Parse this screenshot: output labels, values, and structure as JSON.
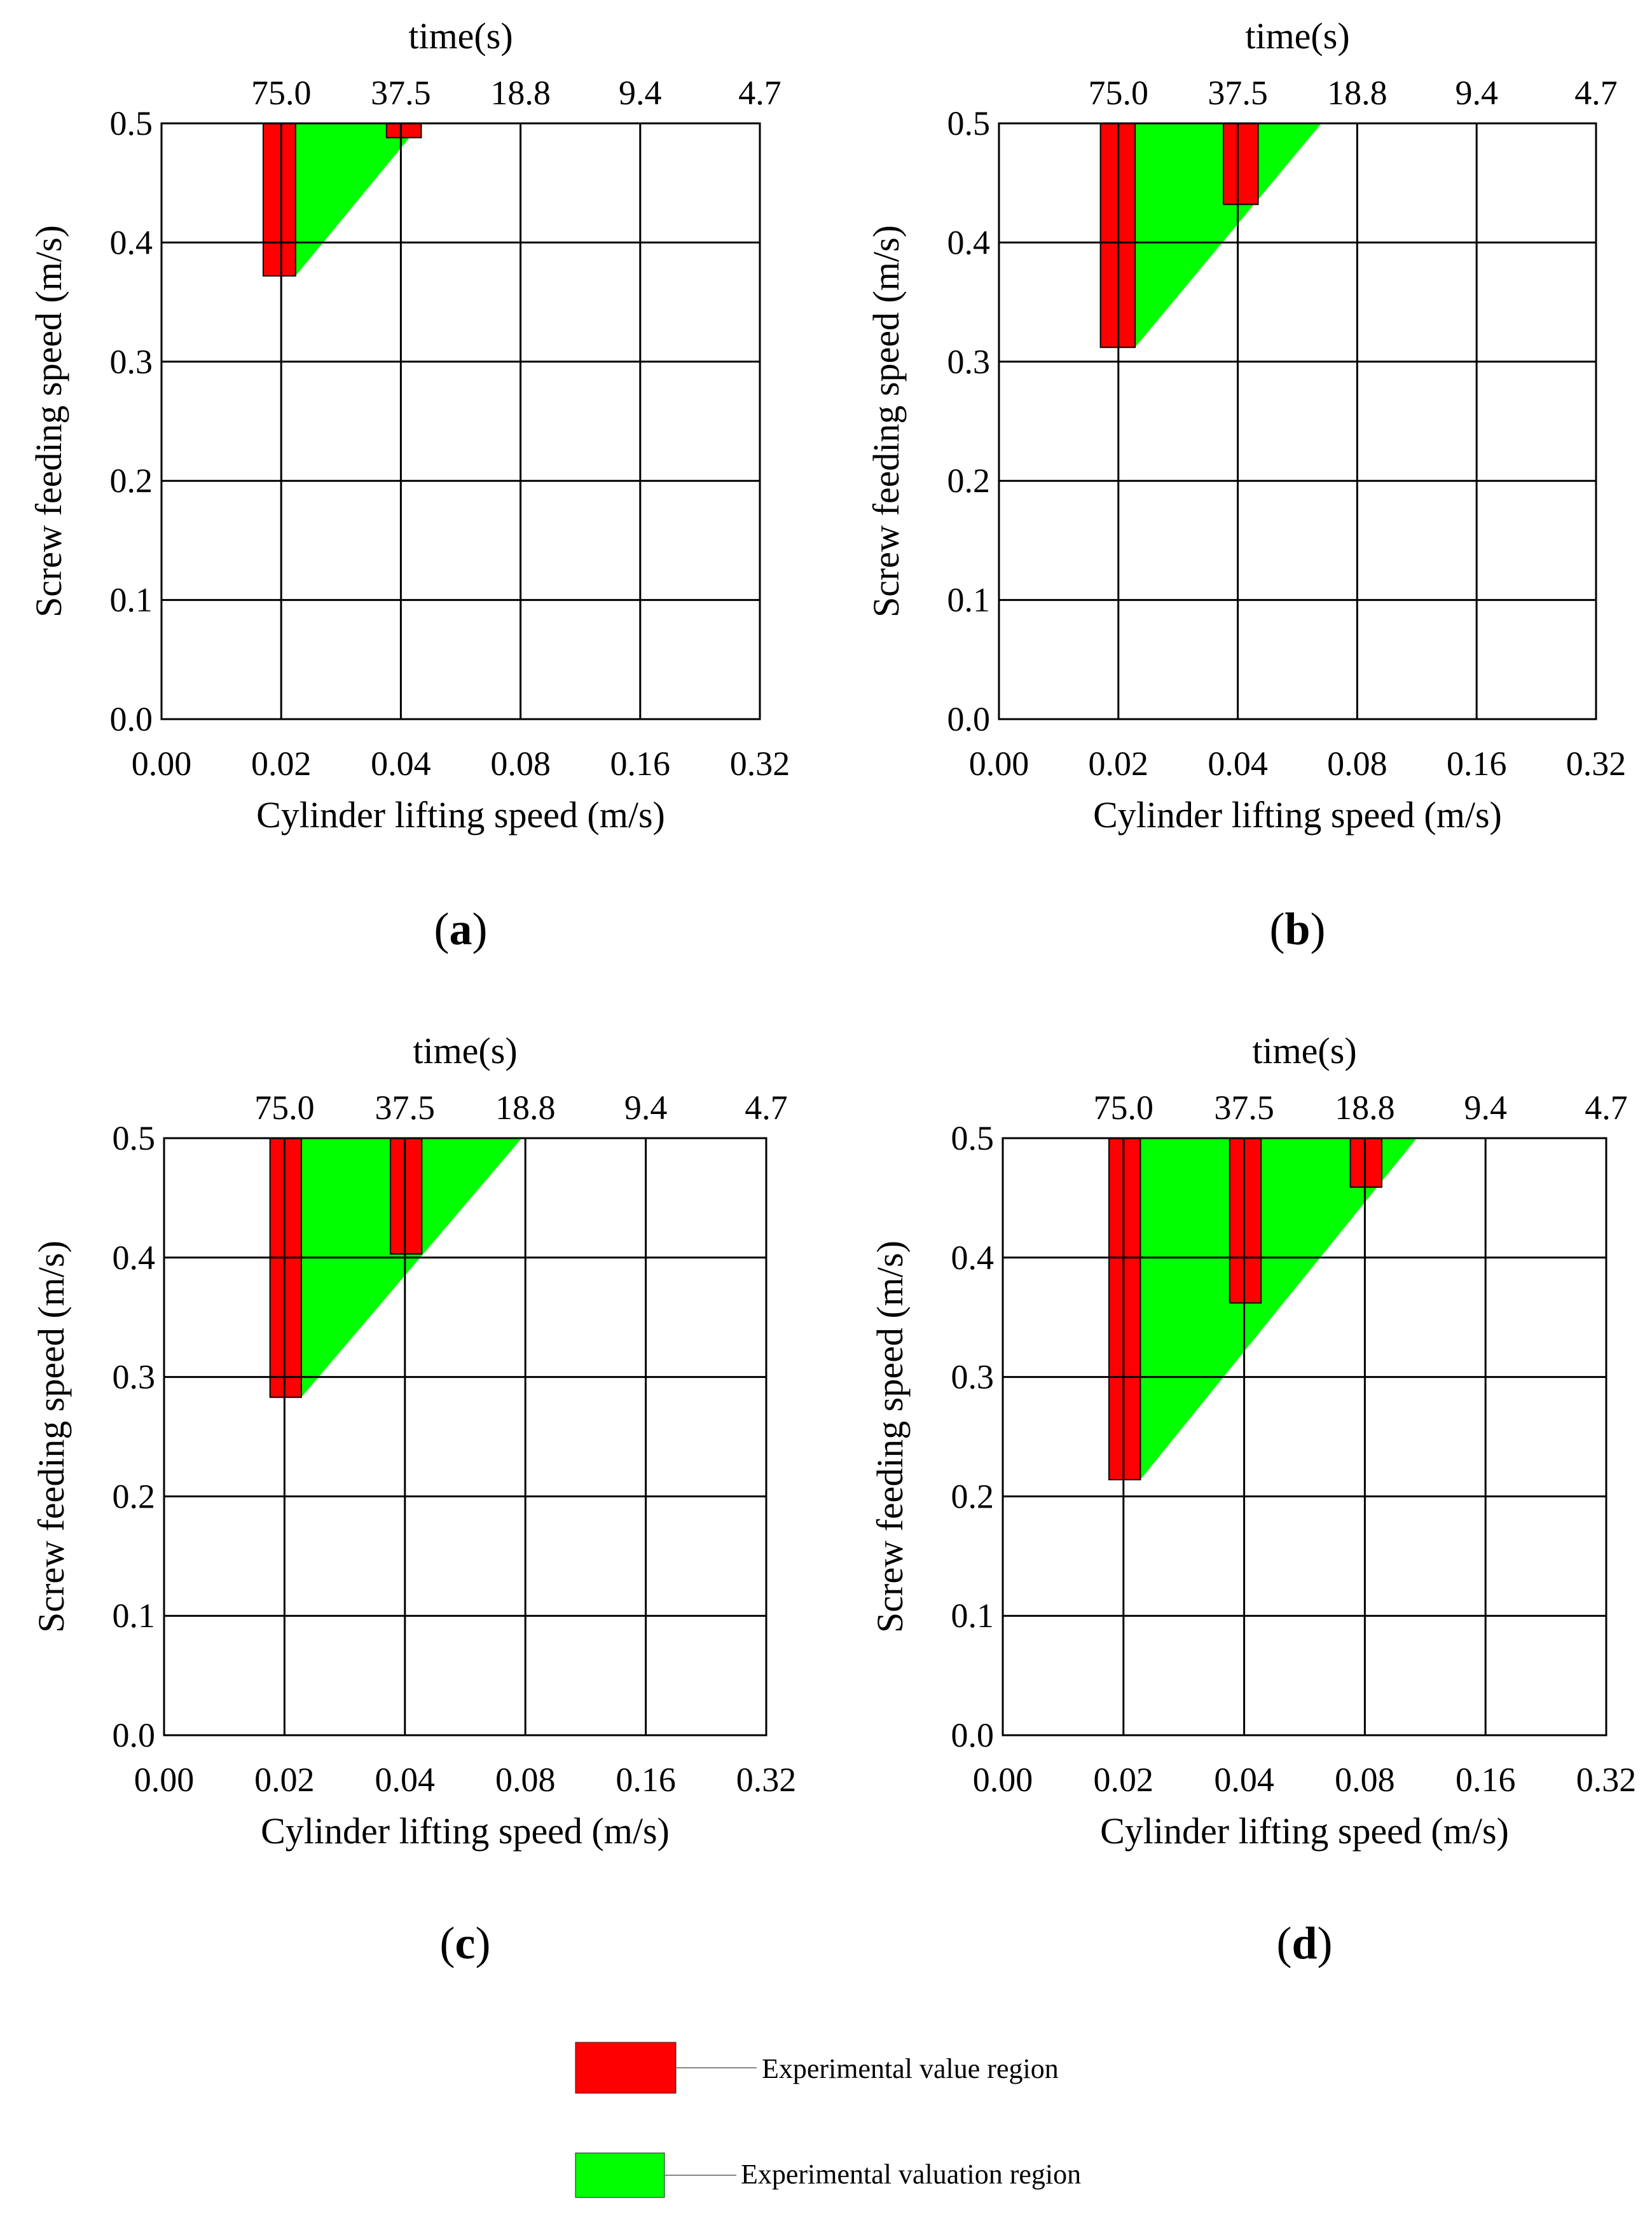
{
  "colors": {
    "experimental": "#ff0000",
    "valuation": "#00ff00",
    "grid": "#000000",
    "background": "#ffffff"
  },
  "chart_data": [
    {
      "type": "area",
      "panel_label": "(a)",
      "panel_letter": "a",
      "xlabel": "Cylinder lifting speed (m/s)",
      "ylabel": "Screw feeding speed (m/s)",
      "top_axis_title": "time(s)",
      "x_tick_labels": [
        "0.00",
        "0.02",
        "0.04",
        "0.08",
        "0.16",
        "0.32"
      ],
      "top_tick_labels": [
        "75.0",
        "37.5",
        "18.8",
        "9.4",
        "4.7"
      ],
      "y_tick_labels": [
        "0.0",
        "0.1",
        "0.2",
        "0.3",
        "0.4",
        "0.5"
      ],
      "ylim": [
        0,
        0.5
      ],
      "valuation_region": [
        [
          0.85,
          0.372
        ],
        [
          1.12,
          0.372
        ],
        [
          2.17,
          0.5
        ],
        [
          0.85,
          0.5
        ]
      ],
      "experimental_bars": [
        {
          "x0": 0.85,
          "x1": 1.12,
          "y_min": 0.372
        },
        {
          "x0": 1.88,
          "x1": 2.17,
          "y_min": 0.488
        }
      ]
    },
    {
      "type": "area",
      "panel_label": "(b)",
      "panel_letter": "b",
      "xlabel": "Cylinder lifting speed (m/s)",
      "ylabel": "Screw feeding speed (m/s)",
      "top_axis_title": "time(s)",
      "x_tick_labels": [
        "0.00",
        "0.02",
        "0.04",
        "0.08",
        "0.16",
        "0.32"
      ],
      "top_tick_labels": [
        "75.0",
        "37.5",
        "18.8",
        "9.4",
        "4.7"
      ],
      "y_tick_labels": [
        "0.0",
        "0.1",
        "0.2",
        "0.3",
        "0.4",
        "0.5"
      ],
      "ylim": [
        0,
        0.5
      ],
      "valuation_region": [
        [
          0.85,
          0.312
        ],
        [
          1.14,
          0.312
        ],
        [
          2.7,
          0.5
        ],
        [
          0.85,
          0.5
        ]
      ],
      "experimental_bars": [
        {
          "x0": 0.85,
          "x1": 1.14,
          "y_min": 0.312
        },
        {
          "x0": 1.88,
          "x1": 2.17,
          "y_min": 0.432
        }
      ]
    },
    {
      "type": "area",
      "panel_label": "(c)",
      "panel_letter": "c",
      "xlabel": "Cylinder lifting speed (m/s)",
      "ylabel": "Screw feeding speed (m/s)",
      "top_axis_title": "time(s)",
      "x_tick_labels": [
        "0.00",
        "0.02",
        "0.04",
        "0.08",
        "0.16",
        "0.32"
      ],
      "top_tick_labels": [
        "75.0",
        "37.5",
        "18.8",
        "9.4",
        "4.7"
      ],
      "y_tick_labels": [
        "0.0",
        "0.1",
        "0.2",
        "0.3",
        "0.4",
        "0.5"
      ],
      "ylim": [
        0,
        0.5
      ],
      "valuation_region": [
        [
          0.88,
          0.283
        ],
        [
          1.14,
          0.283
        ],
        [
          2.97,
          0.5
        ],
        [
          0.88,
          0.5
        ]
      ],
      "experimental_bars": [
        {
          "x0": 0.88,
          "x1": 1.14,
          "y_min": 0.283
        },
        {
          "x0": 1.88,
          "x1": 2.14,
          "y_min": 0.403
        }
      ]
    },
    {
      "type": "area",
      "panel_label": "(d)",
      "panel_letter": "d",
      "xlabel": "Cylinder lifting speed (m/s)",
      "ylabel": "Screw feeding speed (m/s)",
      "top_axis_title": "time(s)",
      "x_tick_labels": [
        "0.00",
        "0.02",
        "0.04",
        "0.08",
        "0.16",
        "0.32"
      ],
      "top_tick_labels": [
        "75.0",
        "37.5",
        "18.8",
        "9.4",
        "4.7"
      ],
      "y_tick_labels": [
        "0.0",
        "0.1",
        "0.2",
        "0.3",
        "0.4",
        "0.5"
      ],
      "ylim": [
        0,
        0.5
      ],
      "valuation_region": [
        [
          0.88,
          0.214
        ],
        [
          1.14,
          0.214
        ],
        [
          3.43,
          0.5
        ],
        [
          0.88,
          0.5
        ]
      ],
      "experimental_bars": [
        {
          "x0": 0.88,
          "x1": 1.14,
          "y_min": 0.214
        },
        {
          "x0": 1.88,
          "x1": 2.14,
          "y_min": 0.362
        },
        {
          "x0": 2.88,
          "x1": 3.14,
          "y_min": 0.459
        }
      ]
    }
  ],
  "legend": [
    {
      "label": "Experimental value region",
      "color_key": "experimental"
    },
    {
      "label": "Experimental valuation region",
      "color_key": "valuation"
    }
  ]
}
